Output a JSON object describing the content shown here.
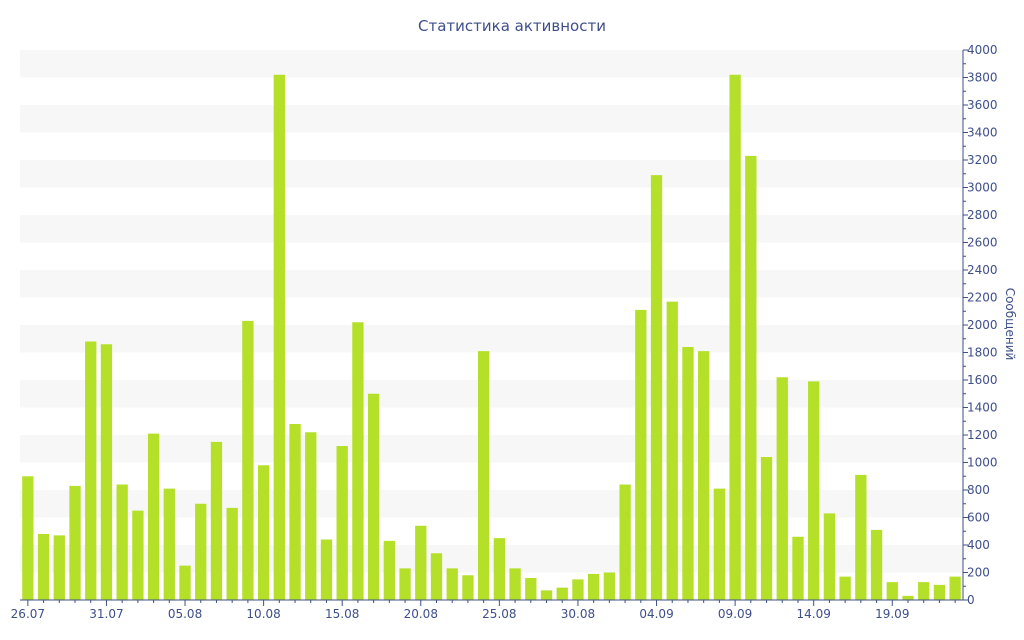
{
  "chart_data": {
    "type": "bar",
    "title": "Статистика активности",
    "xlabel": "",
    "ylabel": "Сообщений",
    "ylim": [
      0,
      4000
    ],
    "y_ticks": [
      0,
      200,
      400,
      600,
      800,
      1000,
      1200,
      1400,
      1600,
      1800,
      2000,
      2200,
      2400,
      2600,
      2800,
      3000,
      3200,
      3400,
      3600,
      3800,
      4000
    ],
    "y_axis_side": "right",
    "grid": "alternating horizontal bands",
    "bar_color": "#b5e02a",
    "x_tick_labels": [
      "26.07",
      "31.07",
      "05.08",
      "10.08",
      "15.08",
      "20.08",
      "25.08",
      "30.08",
      "04.09",
      "09.09",
      "14.09",
      "19.09"
    ],
    "categories": [
      "26.07",
      "27.07",
      "28.07",
      "29.07",
      "30.07",
      "31.07",
      "01.08",
      "02.08",
      "03.08",
      "04.08",
      "05.08",
      "06.08",
      "07.08",
      "08.08",
      "09.08",
      "10.08",
      "11.08",
      "12.08",
      "13.08",
      "14.08",
      "15.08",
      "16.08",
      "17.08",
      "18.08",
      "19.08",
      "20.08",
      "21.08",
      "22.08",
      "23.08",
      "24.08",
      "25.08",
      "26.08",
      "27.08",
      "28.08",
      "29.08",
      "30.08",
      "31.08",
      "01.09",
      "02.09",
      "03.09",
      "04.09",
      "05.09",
      "06.09",
      "07.09",
      "08.09",
      "09.09",
      "10.09",
      "11.09",
      "12.09",
      "13.09",
      "14.09",
      "15.09",
      "16.09",
      "17.09",
      "18.09",
      "19.09",
      "20.09",
      "21.09",
      "22.09",
      "23.09"
    ],
    "values": [
      900,
      480,
      470,
      830,
      1880,
      1860,
      840,
      650,
      1210,
      810,
      250,
      700,
      1150,
      670,
      2030,
      980,
      3820,
      1280,
      1220,
      440,
      1120,
      2020,
      1500,
      430,
      230,
      540,
      340,
      230,
      180,
      1810,
      450,
      230,
      160,
      70,
      90,
      150,
      190,
      200,
      840,
      2110,
      3090,
      2170,
      1840,
      1810,
      810,
      3820,
      3230,
      1040,
      1620,
      460,
      1590,
      630,
      170,
      910,
      510,
      130,
      30,
      130,
      110,
      170
    ]
  }
}
